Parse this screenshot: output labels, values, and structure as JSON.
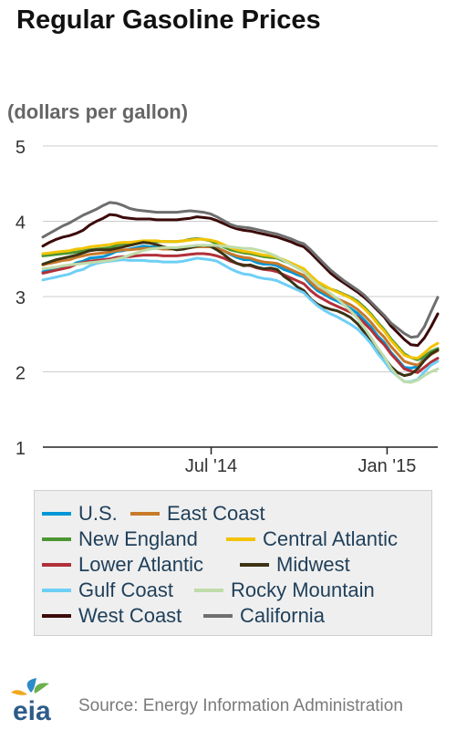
{
  "title": "Regular Gasoline Prices",
  "units": "(dollars per gallon)",
  "source": "Source: Energy Information Administration",
  "logo_text": "eia",
  "chart_data": {
    "type": "line",
    "title": "Regular Gasoline Prices",
    "ylabel": "(dollars per gallon)",
    "xlabel": "",
    "ylim": [
      1,
      5
    ],
    "yticks": [
      1,
      2,
      3,
      4,
      5
    ],
    "xlim": [
      "2014-01-06",
      "2015-02-23"
    ],
    "xticks": [
      {
        "date": "2014-07-01",
        "label": "Jul '14"
      },
      {
        "date": "2015-01-01",
        "label": "Jan '15"
      }
    ],
    "grid": "horizontal",
    "legend_placement": "bottom",
    "x": [
      "2014-01-06",
      "2014-01-13",
      "2014-01-20",
      "2014-01-27",
      "2014-02-03",
      "2014-02-10",
      "2014-02-17",
      "2014-02-24",
      "2014-03-03",
      "2014-03-10",
      "2014-03-17",
      "2014-03-24",
      "2014-03-31",
      "2014-04-07",
      "2014-04-14",
      "2014-04-21",
      "2014-04-28",
      "2014-05-05",
      "2014-05-12",
      "2014-05-19",
      "2014-05-26",
      "2014-06-02",
      "2014-06-09",
      "2014-06-16",
      "2014-06-23",
      "2014-06-30",
      "2014-07-07",
      "2014-07-14",
      "2014-07-21",
      "2014-07-28",
      "2014-08-04",
      "2014-08-11",
      "2014-08-18",
      "2014-08-25",
      "2014-09-01",
      "2014-09-08",
      "2014-09-15",
      "2014-09-22",
      "2014-09-29",
      "2014-10-06",
      "2014-10-13",
      "2014-10-20",
      "2014-10-27",
      "2014-11-03",
      "2014-11-10",
      "2014-11-17",
      "2014-11-24",
      "2014-12-01",
      "2014-12-08",
      "2014-12-15",
      "2014-12-22",
      "2014-12-29",
      "2015-01-05",
      "2015-01-12",
      "2015-01-19",
      "2015-01-26",
      "2015-02-02",
      "2015-02-09",
      "2015-02-16",
      "2015-02-23"
    ],
    "series": [
      {
        "name": "U.S.",
        "color": "#0096d6",
        "values": [
          3.33,
          3.35,
          3.37,
          3.39,
          3.4,
          3.45,
          3.47,
          3.51,
          3.52,
          3.53,
          3.56,
          3.6,
          3.61,
          3.63,
          3.65,
          3.67,
          3.66,
          3.66,
          3.64,
          3.64,
          3.63,
          3.65,
          3.66,
          3.68,
          3.67,
          3.67,
          3.65,
          3.61,
          3.56,
          3.52,
          3.49,
          3.49,
          3.45,
          3.43,
          3.43,
          3.41,
          3.36,
          3.33,
          3.29,
          3.26,
          3.16,
          3.08,
          3.03,
          2.98,
          2.94,
          2.89,
          2.84,
          2.78,
          2.69,
          2.6,
          2.48,
          2.39,
          2.26,
          2.16,
          2.06,
          2.05,
          2.07,
          2.19,
          2.27,
          2.31
        ]
      },
      {
        "name": "East Coast",
        "color": "#c8792a",
        "values": [
          3.42,
          3.44,
          3.46,
          3.48,
          3.49,
          3.52,
          3.54,
          3.56,
          3.57,
          3.58,
          3.59,
          3.61,
          3.62,
          3.62,
          3.63,
          3.64,
          3.64,
          3.64,
          3.63,
          3.63,
          3.63,
          3.64,
          3.65,
          3.66,
          3.66,
          3.66,
          3.64,
          3.61,
          3.57,
          3.54,
          3.52,
          3.51,
          3.48,
          3.46,
          3.45,
          3.44,
          3.4,
          3.36,
          3.32,
          3.28,
          3.19,
          3.11,
          3.06,
          3.01,
          2.97,
          2.93,
          2.89,
          2.83,
          2.75,
          2.66,
          2.55,
          2.46,
          2.34,
          2.24,
          2.14,
          2.11,
          2.09,
          2.16,
          2.23,
          2.28
        ]
      },
      {
        "name": "New England",
        "color": "#4b9632",
        "values": [
          3.54,
          3.55,
          3.56,
          3.57,
          3.58,
          3.59,
          3.61,
          3.62,
          3.63,
          3.64,
          3.65,
          3.68,
          3.7,
          3.71,
          3.72,
          3.73,
          3.73,
          3.73,
          3.73,
          3.73,
          3.73,
          3.74,
          3.76,
          3.77,
          3.76,
          3.74,
          3.7,
          3.66,
          3.62,
          3.6,
          3.58,
          3.57,
          3.55,
          3.53,
          3.52,
          3.51,
          3.47,
          3.44,
          3.4,
          3.35,
          3.26,
          3.19,
          3.14,
          3.1,
          3.07,
          3.03,
          2.99,
          2.94,
          2.86,
          2.77,
          2.66,
          2.56,
          2.44,
          2.34,
          2.24,
          2.19,
          2.16,
          2.21,
          2.27,
          2.31
        ]
      },
      {
        "name": "Central Atlantic",
        "color": "#f2c300",
        "values": [
          3.57,
          3.58,
          3.59,
          3.6,
          3.61,
          3.63,
          3.64,
          3.66,
          3.67,
          3.68,
          3.69,
          3.71,
          3.72,
          3.72,
          3.73,
          3.74,
          3.74,
          3.74,
          3.73,
          3.73,
          3.73,
          3.74,
          3.75,
          3.76,
          3.76,
          3.75,
          3.73,
          3.69,
          3.65,
          3.62,
          3.6,
          3.59,
          3.57,
          3.55,
          3.54,
          3.52,
          3.49,
          3.45,
          3.41,
          3.37,
          3.28,
          3.2,
          3.15,
          3.1,
          3.06,
          3.02,
          2.98,
          2.92,
          2.84,
          2.75,
          2.64,
          2.54,
          2.42,
          2.32,
          2.22,
          2.19,
          2.18,
          2.25,
          2.33,
          2.38
        ]
      },
      {
        "name": "Lower Atlantic",
        "color": "#b1303a",
        "values": [
          3.31,
          3.33,
          3.35,
          3.37,
          3.39,
          3.43,
          3.45,
          3.47,
          3.48,
          3.49,
          3.5,
          3.52,
          3.53,
          3.53,
          3.54,
          3.55,
          3.55,
          3.55,
          3.54,
          3.54,
          3.54,
          3.55,
          3.56,
          3.57,
          3.57,
          3.56,
          3.54,
          3.51,
          3.47,
          3.44,
          3.42,
          3.41,
          3.38,
          3.36,
          3.35,
          3.33,
          3.29,
          3.25,
          3.21,
          3.17,
          3.08,
          3.01,
          2.96,
          2.91,
          2.87,
          2.83,
          2.79,
          2.73,
          2.65,
          2.56,
          2.45,
          2.36,
          2.24,
          2.14,
          2.04,
          2.01,
          1.99,
          2.06,
          2.13,
          2.18
        ]
      },
      {
        "name": "Midwest",
        "color": "#3c3214",
        "values": [
          3.43,
          3.46,
          3.49,
          3.51,
          3.53,
          3.55,
          3.58,
          3.61,
          3.62,
          3.62,
          3.62,
          3.64,
          3.66,
          3.68,
          3.7,
          3.72,
          3.71,
          3.69,
          3.66,
          3.64,
          3.62,
          3.63,
          3.65,
          3.67,
          3.68,
          3.67,
          3.62,
          3.56,
          3.49,
          3.44,
          3.41,
          3.42,
          3.39,
          3.37,
          3.38,
          3.36,
          3.27,
          3.21,
          3.13,
          3.08,
          2.97,
          2.9,
          2.86,
          2.83,
          2.81,
          2.77,
          2.72,
          2.64,
          2.53,
          2.42,
          2.3,
          2.19,
          2.07,
          1.99,
          1.95,
          1.97,
          2.04,
          2.15,
          2.24,
          2.29
        ]
      },
      {
        "name": "Gulf Coast",
        "color": "#6ecff6",
        "values": [
          3.22,
          3.24,
          3.26,
          3.28,
          3.3,
          3.34,
          3.36,
          3.41,
          3.44,
          3.46,
          3.47,
          3.48,
          3.49,
          3.48,
          3.48,
          3.48,
          3.47,
          3.47,
          3.46,
          3.46,
          3.46,
          3.47,
          3.49,
          3.51,
          3.5,
          3.49,
          3.47,
          3.42,
          3.37,
          3.33,
          3.3,
          3.29,
          3.26,
          3.24,
          3.23,
          3.21,
          3.17,
          3.13,
          3.09,
          3.05,
          2.96,
          2.88,
          2.82,
          2.77,
          2.73,
          2.68,
          2.63,
          2.57,
          2.48,
          2.38,
          2.25,
          2.14,
          2.02,
          1.94,
          1.87,
          1.87,
          1.9,
          2.0,
          2.09,
          2.14
        ]
      },
      {
        "name": "Rocky Mountain",
        "color": "#bfdcaa",
        "values": [
          3.37,
          3.38,
          3.39,
          3.41,
          3.42,
          3.43,
          3.44,
          3.45,
          3.46,
          3.47,
          3.48,
          3.5,
          3.52,
          3.55,
          3.58,
          3.61,
          3.63,
          3.64,
          3.65,
          3.65,
          3.65,
          3.66,
          3.67,
          3.68,
          3.68,
          3.68,
          3.68,
          3.67,
          3.66,
          3.65,
          3.64,
          3.64,
          3.62,
          3.6,
          3.57,
          3.53,
          3.48,
          3.43,
          3.38,
          3.33,
          3.24,
          3.16,
          3.1,
          3.04,
          2.97,
          2.89,
          2.81,
          2.71,
          2.59,
          2.46,
          2.32,
          2.2,
          2.05,
          1.94,
          1.87,
          1.86,
          1.89,
          1.95,
          2.0,
          2.04
        ]
      },
      {
        "name": "West Coast",
        "color": "#3c0a0a",
        "values": [
          3.67,
          3.72,
          3.76,
          3.79,
          3.81,
          3.84,
          3.88,
          3.95,
          4.0,
          4.04,
          4.09,
          4.08,
          4.05,
          4.04,
          4.03,
          4.03,
          4.03,
          4.02,
          4.02,
          4.02,
          4.02,
          4.03,
          4.04,
          4.06,
          4.05,
          4.04,
          4.01,
          3.97,
          3.93,
          3.9,
          3.88,
          3.87,
          3.85,
          3.83,
          3.81,
          3.79,
          3.76,
          3.73,
          3.69,
          3.66,
          3.58,
          3.49,
          3.4,
          3.31,
          3.24,
          3.18,
          3.12,
          3.06,
          2.99,
          2.91,
          2.82,
          2.73,
          2.61,
          2.52,
          2.43,
          2.36,
          2.35,
          2.45,
          2.6,
          2.77
        ]
      },
      {
        "name": "California",
        "color": "#6e6e6e",
        "values": [
          3.79,
          3.84,
          3.89,
          3.94,
          3.98,
          4.03,
          4.08,
          4.12,
          4.16,
          4.21,
          4.25,
          4.24,
          4.21,
          4.17,
          4.15,
          4.14,
          4.13,
          4.12,
          4.12,
          4.12,
          4.12,
          4.13,
          4.14,
          4.13,
          4.12,
          4.1,
          4.06,
          4.01,
          3.96,
          3.93,
          3.92,
          3.91,
          3.89,
          3.87,
          3.85,
          3.83,
          3.8,
          3.77,
          3.73,
          3.7,
          3.62,
          3.53,
          3.44,
          3.35,
          3.28,
          3.21,
          3.15,
          3.09,
          3.02,
          2.93,
          2.84,
          2.75,
          2.65,
          2.58,
          2.51,
          2.46,
          2.47,
          2.6,
          2.8,
          2.99
        ]
      }
    ]
  }
}
